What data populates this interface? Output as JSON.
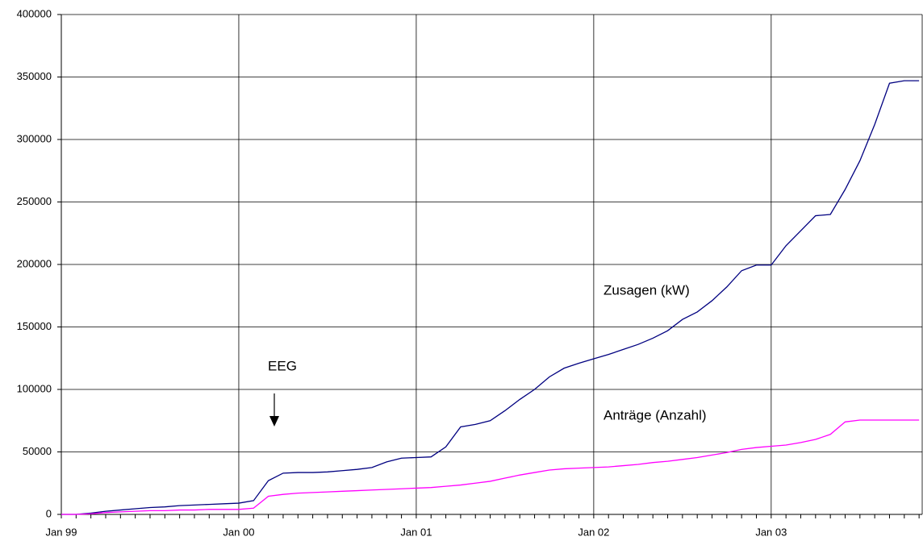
{
  "chart_data": {
    "type": "line",
    "categories": [
      "Jan 99",
      null,
      null,
      null,
      null,
      null,
      null,
      null,
      null,
      null,
      null,
      null,
      "Jan 00",
      null,
      null,
      null,
      null,
      null,
      null,
      null,
      null,
      null,
      null,
      null,
      "Jan 01",
      null,
      null,
      null,
      null,
      null,
      null,
      null,
      null,
      null,
      null,
      null,
      "Jan 02",
      null,
      null,
      null,
      null,
      null,
      null,
      null,
      null,
      null,
      null,
      null,
      "Jan 03",
      null,
      null,
      null,
      null,
      null,
      null,
      null,
      null,
      null,
      null
    ],
    "series": [
      {
        "name": "Zusagen (kW)",
        "color": "#000080",
        "values": [
          0,
          0,
          1000,
          2500,
          3500,
          4500,
          5500,
          6000,
          7000,
          7500,
          8000,
          8500,
          9000,
          11000,
          27000,
          33000,
          33500,
          33500,
          34000,
          35000,
          36000,
          37500,
          42000,
          45000,
          45500,
          46000,
          54000,
          70000,
          72000,
          75000,
          83000,
          92000,
          100000,
          110000,
          117000,
          121000,
          124500,
          128000,
          132000,
          136000,
          141000,
          147000,
          156000,
          162000,
          171000,
          182000,
          195000,
          199500,
          199500,
          215000,
          227000,
          239000,
          240000,
          260000,
          283000,
          312000,
          345000,
          347000,
          347000
        ]
      },
      {
        "name": "Anträge (Anzahl)",
        "color": "#ff00ff",
        "values": [
          0,
          0,
          500,
          1500,
          2000,
          2500,
          3000,
          3000,
          3500,
          3500,
          4000,
          4000,
          4000,
          5000,
          14500,
          16000,
          17000,
          17500,
          18000,
          18500,
          19000,
          19500,
          20000,
          20500,
          21000,
          21500,
          22500,
          23500,
          25000,
          26500,
          29000,
          31500,
          33500,
          35500,
          36500,
          37000,
          37500,
          38000,
          39000,
          40000,
          41500,
          42500,
          44000,
          45500,
          47500,
          49500,
          52000,
          53500,
          54500,
          55500,
          57500,
          60000,
          64000,
          74000,
          75500,
          75500,
          75500,
          75500,
          75500
        ]
      }
    ],
    "annotations": [
      "EEG"
    ],
    "ylim": [
      0,
      400000
    ],
    "yticks": [
      0,
      50000,
      100000,
      150000,
      200000,
      250000,
      300000,
      350000,
      400000
    ],
    "grid": true
  }
}
